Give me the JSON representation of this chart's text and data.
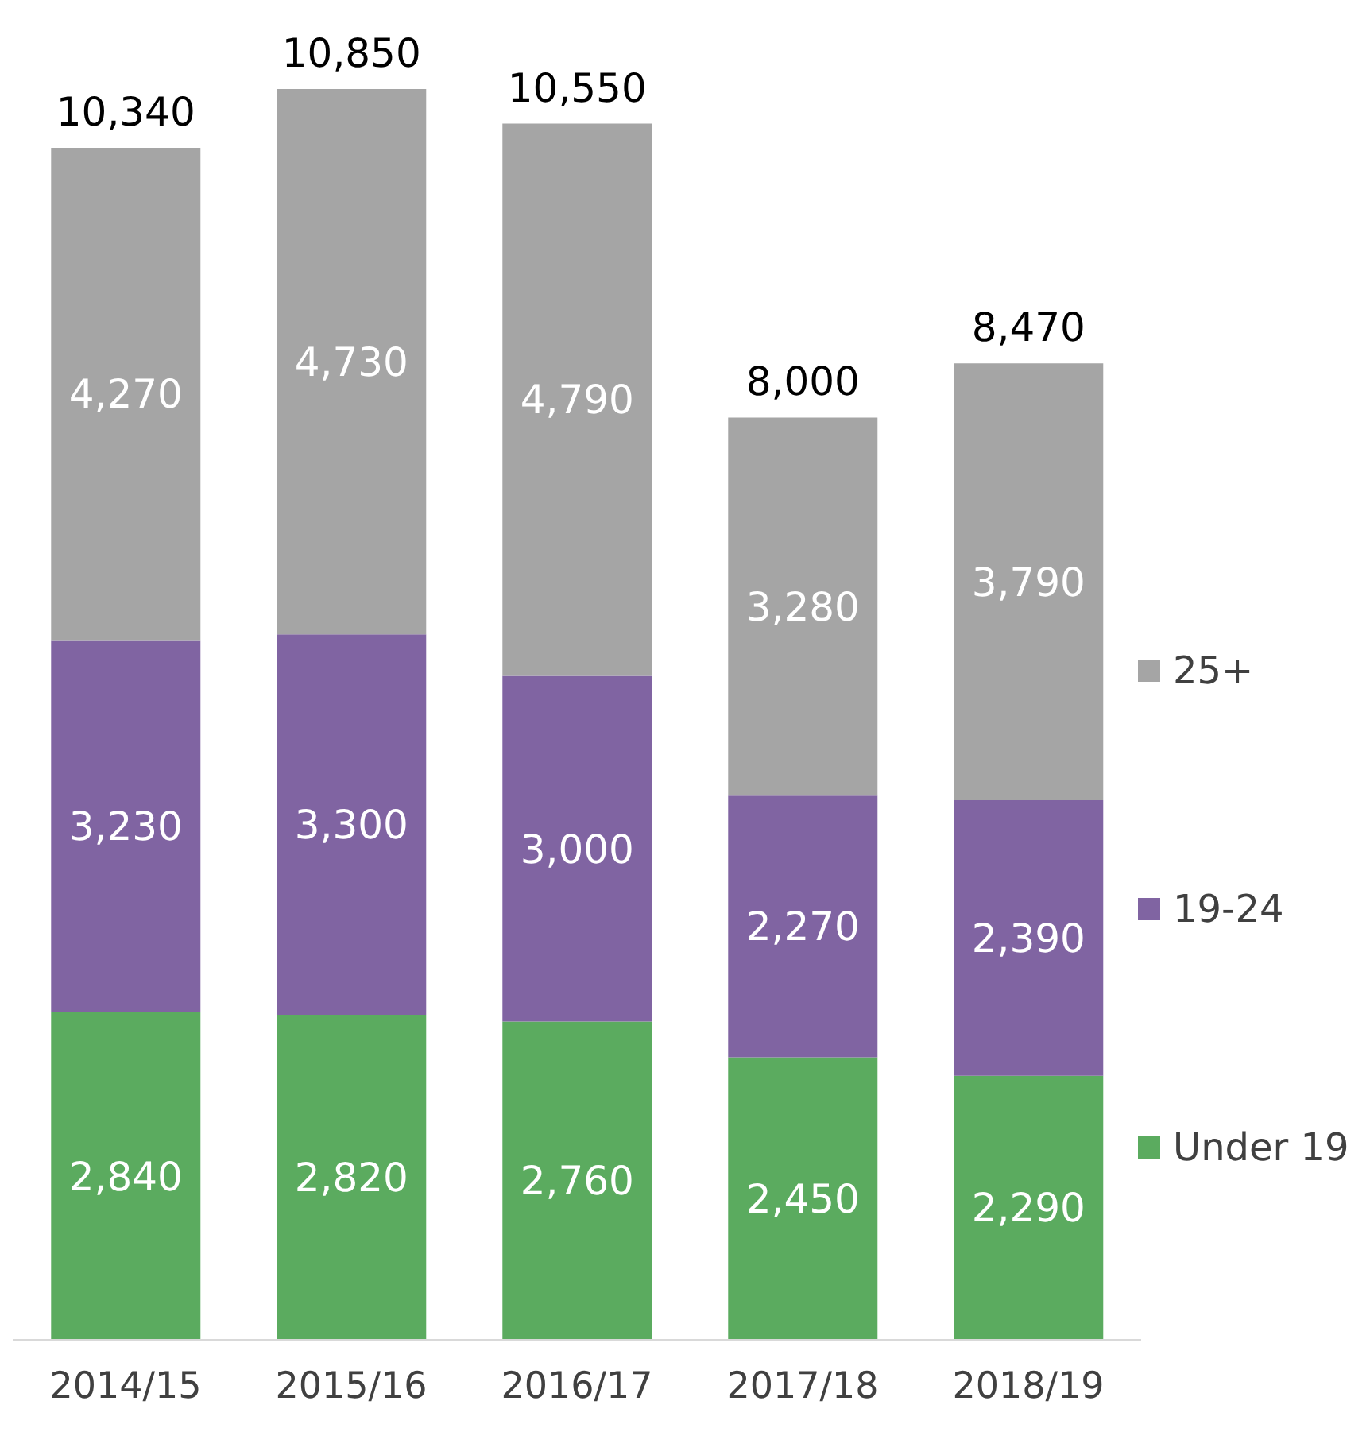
{
  "chart_data": {
    "type": "bar",
    "stacked": true,
    "categories": [
      "2014/15",
      "2015/16",
      "2016/17",
      "2017/18",
      "2018/19"
    ],
    "series": [
      {
        "name": "Under 19",
        "color": "#5bab5f",
        "values": [
          2840,
          2820,
          2760,
          2450,
          2290
        ],
        "value_labels": [
          "2,840",
          "2,820",
          "2,760",
          "2,450",
          "2,290"
        ]
      },
      {
        "name": "19-24",
        "color": "#8064a2",
        "values": [
          3230,
          3300,
          3000,
          2270,
          2390
        ],
        "value_labels": [
          "3,230",
          "3,300",
          "3,000",
          "2,270",
          "2,390"
        ]
      },
      {
        "name": "25+",
        "color": "#a5a5a5",
        "values": [
          4270,
          4730,
          4790,
          3280,
          3790
        ],
        "value_labels": [
          "4,270",
          "4,730",
          "4,790",
          "3,280",
          "3,790"
        ]
      }
    ],
    "totals": [
      "10,340",
      "10,850",
      "10,550",
      "8,000",
      "8,470"
    ],
    "legend": "right"
  }
}
